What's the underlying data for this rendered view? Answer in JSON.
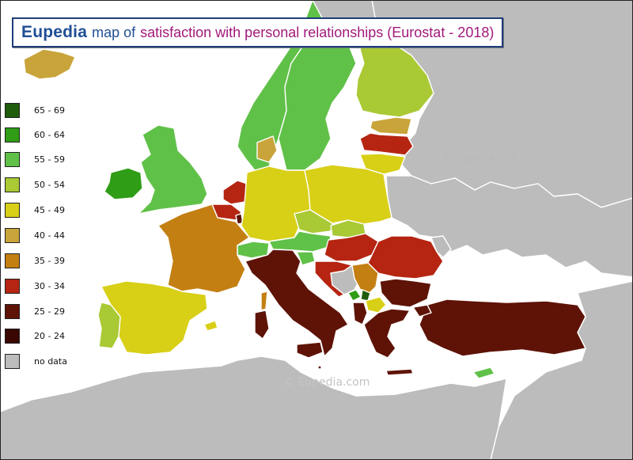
{
  "title": {
    "brand": "Eupedia",
    "prefix": "map of",
    "subject": "satisfaction with personal relationships (Eurostat - 2018)"
  },
  "legend": [
    {
      "label": "65 - 69",
      "color": "#1f5c0b"
    },
    {
      "label": "60 - 64",
      "color": "#2f9d16"
    },
    {
      "label": "55 - 59",
      "color": "#60c148"
    },
    {
      "label": "50 - 54",
      "color": "#a9c935"
    },
    {
      "label": "45 - 49",
      "color": "#d8cf17"
    },
    {
      "label": "40 - 44",
      "color": "#c8a43a"
    },
    {
      "label": "35 - 39",
      "color": "#c47f12"
    },
    {
      "label": "30 - 34",
      "color": "#b52512"
    },
    {
      "label": "25 - 29",
      "color": "#5e1306"
    },
    {
      "label": "20 - 24",
      "color": "#3a0600"
    },
    {
      "label": "no data",
      "color": "#bcbcbc"
    }
  ],
  "watermarks": {
    "top": "©  Eupedia.com",
    "bottom": "©  Eupedia.com"
  },
  "colors": {
    "sea": "#ffffff",
    "land_no_data": "#bcbcbc",
    "border": "#ffffff",
    "title_blue": "#1f4e96",
    "title_magenta": "#a1197a"
  }
}
